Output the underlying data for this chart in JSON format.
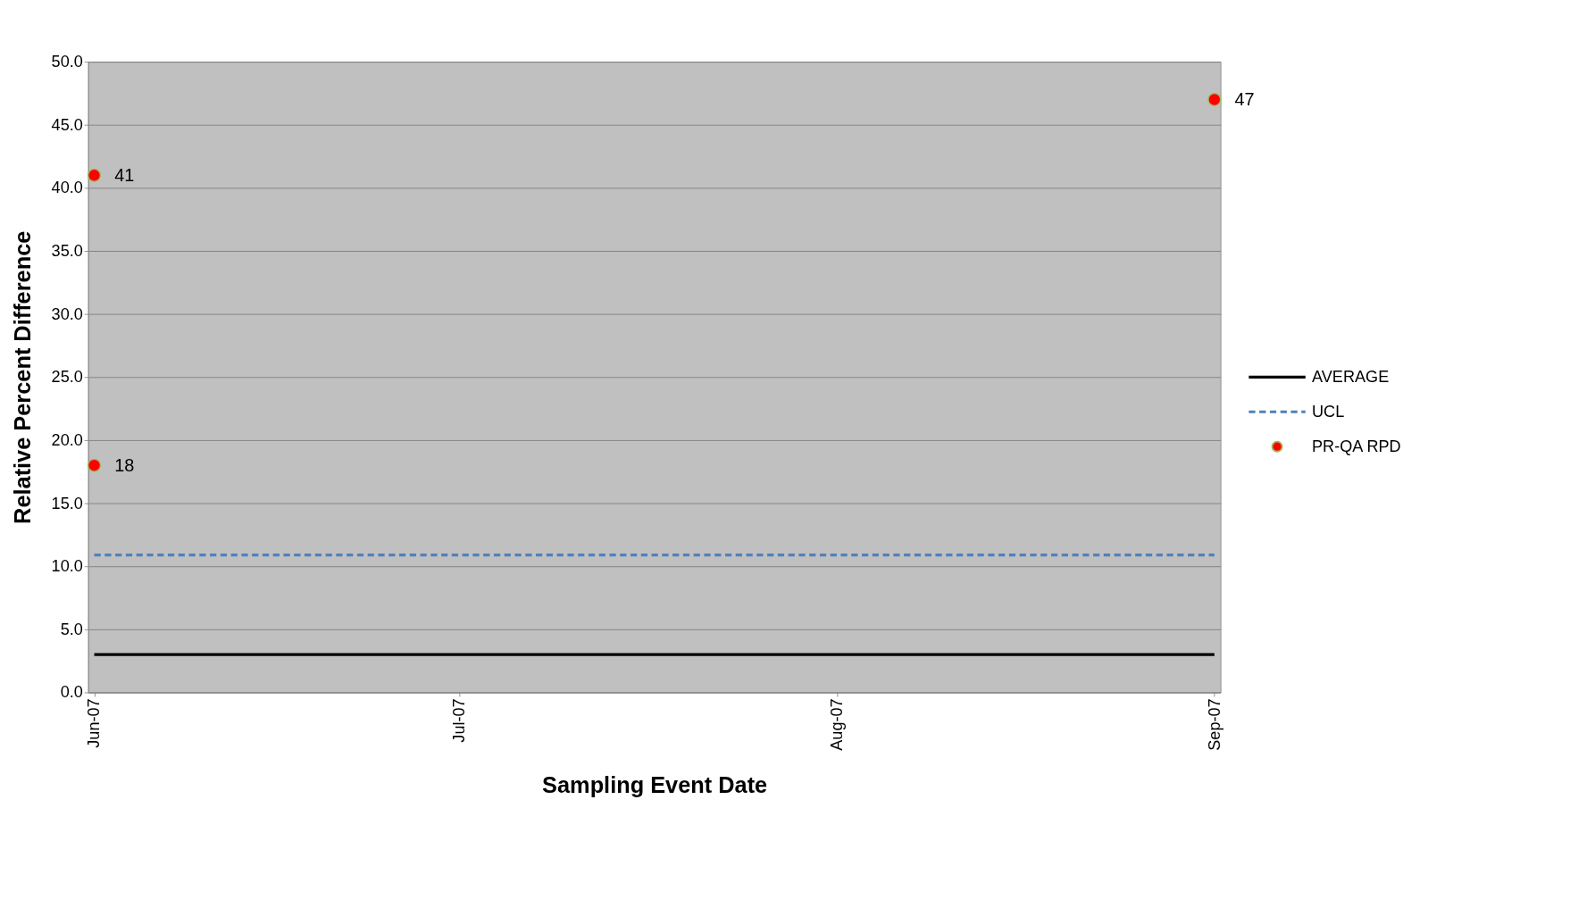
{
  "chart_data": {
    "type": "scatter",
    "xlabel": "Sampling Event Date",
    "ylabel": "Relative Percent Difference",
    "xlim": [
      "2007-05-31T12:00",
      "2007-09-01T12:00"
    ],
    "xticks": [
      {
        "value": "2007-06-01",
        "label": "Jun-07"
      },
      {
        "value": "2007-07-01",
        "label": "Jul-07"
      },
      {
        "value": "2007-08-01",
        "label": "Aug-07"
      },
      {
        "value": "2007-09-01",
        "label": "Sep-07"
      }
    ],
    "ylim": [
      0,
      50
    ],
    "yticks": [
      {
        "value": 0,
        "label": "0.0"
      },
      {
        "value": 5,
        "label": "5.0"
      },
      {
        "value": 10,
        "label": "10.0"
      },
      {
        "value": 15,
        "label": "15.0"
      },
      {
        "value": 20,
        "label": "20.0"
      },
      {
        "value": 25,
        "label": "25.0"
      },
      {
        "value": 30,
        "label": "30.0"
      },
      {
        "value": 35,
        "label": "35.0"
      },
      {
        "value": 40,
        "label": "40.0"
      },
      {
        "value": 45,
        "label": "45.0"
      },
      {
        "value": 50,
        "label": "50.0"
      }
    ],
    "grid": "y",
    "legend": "right",
    "series": [
      {
        "name": "AVERAGE",
        "type": "line",
        "color": "#000000",
        "line_style": "solid",
        "x": [
          "2007-06-01",
          "2007-09-01"
        ],
        "values": [
          3.0,
          3.0
        ]
      },
      {
        "name": "UCL",
        "type": "line",
        "color": "#4f81bd",
        "line_style": "dashed",
        "x": [
          "2007-06-01",
          "2007-09-01"
        ],
        "values": [
          10.9,
          10.9
        ]
      },
      {
        "name": "PR-QA RPD",
        "color": "#ff0000",
        "marker": "circle",
        "x": [
          "2007-06-01",
          "2007-06-01",
          "2007-09-01"
        ],
        "values": [
          41,
          18,
          47
        ],
        "value_labels": [
          "41",
          "18",
          "47"
        ]
      }
    ]
  }
}
